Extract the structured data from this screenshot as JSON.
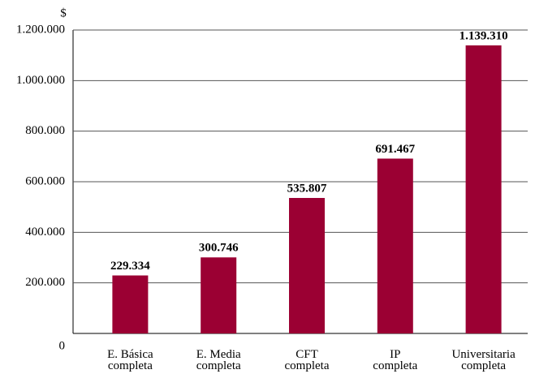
{
  "chart_data": {
    "type": "bar",
    "y_label": "$",
    "categories": [
      "E. Básica\ncompleta",
      "E. Media\ncompleta",
      "CFT\ncompleta",
      "IP\ncompleta",
      "Universitaria\ncompleta"
    ],
    "values": [
      229334,
      300746,
      535807,
      691467,
      1139310
    ],
    "value_labels": [
      "229.334",
      "300.746",
      "535.807",
      "691.467",
      "1.139.310"
    ],
    "color": "#9b0033",
    "ylim": [
      0,
      1200000
    ],
    "yticks": [
      0,
      {
        "value": 200000,
        "label": "200.000"
      },
      {
        "value": 400000,
        "label": "400.000"
      },
      {
        "value": 600000,
        "label": "600.000"
      },
      {
        "value": 800000,
        "label": "800.000"
      },
      {
        "value": 1000000,
        "label": "1.000.000"
      },
      {
        "value": 1200000,
        "label": "1.200.000"
      }
    ],
    "grid": true
  }
}
